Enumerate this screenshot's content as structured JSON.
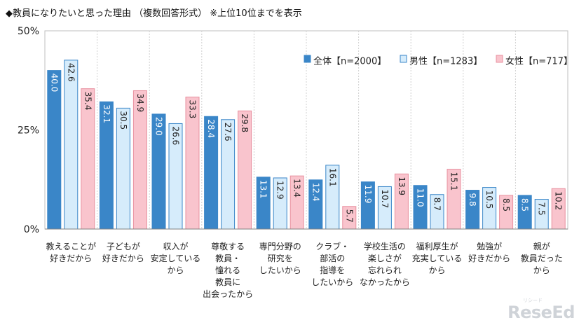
{
  "title": "◆教員になりたいと思った理由 （複数回答形式） ※上位10位までを表示",
  "watermark": "ReseEd",
  "watermark_sub": "リシード",
  "chart_data": {
    "type": "bar",
    "ylim": [
      0,
      50
    ],
    "yticks": [
      "0%",
      "25%",
      "50%"
    ],
    "ytick_values": [
      0,
      25,
      50
    ],
    "legend_position": "top-right",
    "categories": [
      [
        "教えることが",
        "好きだから"
      ],
      [
        "子どもが",
        "好きだから"
      ],
      [
        "収入が",
        "安定している",
        "から"
      ],
      [
        "尊敬する",
        "教員・",
        "憧れる",
        "教員に",
        "出会ったから"
      ],
      [
        "専門分野の",
        "研究を",
        "したいから"
      ],
      [
        "クラブ・",
        "部活の",
        "指導を",
        "したいから"
      ],
      [
        "学校生活の",
        "楽しさが",
        "忘れられ",
        "なかったから"
      ],
      [
        "福利厚生が",
        "充実している",
        "から"
      ],
      [
        "勉強が",
        "好きだから"
      ],
      [
        "親が",
        "教員だった",
        "から"
      ]
    ],
    "series": [
      {
        "name": "全体【n=2000】",
        "color": "#3a86c8",
        "stroke": "#3a86c8",
        "label_color": "#ffffff",
        "values": [
          40.0,
          32.1,
          29.0,
          28.4,
          13.1,
          12.4,
          11.9,
          11.0,
          9.8,
          8.5
        ]
      },
      {
        "name": "男性【n=1283】",
        "color": "#d6ecfb",
        "stroke": "#3a86c8",
        "label_color": "#222222",
        "values": [
          42.6,
          30.5,
          26.6,
          27.6,
          12.9,
          16.1,
          10.7,
          8.7,
          10.5,
          7.5
        ]
      },
      {
        "name": "女性【n=717】",
        "color": "#f9c4cd",
        "stroke": "#e8909f",
        "label_color": "#222222",
        "values": [
          35.4,
          34.9,
          33.3,
          29.8,
          13.4,
          5.7,
          13.9,
          15.1,
          8.5,
          10.2
        ]
      }
    ]
  }
}
